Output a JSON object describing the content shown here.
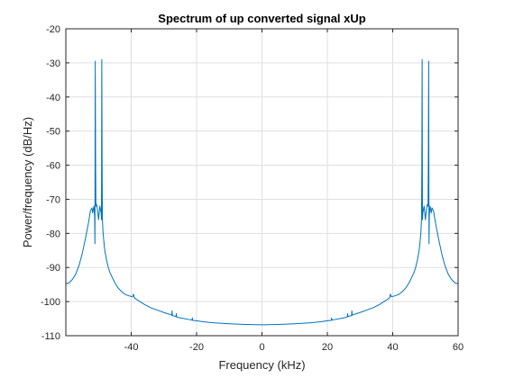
{
  "chart_data": {
    "type": "line",
    "title": "Spectrum of up converted signal xUp",
    "xlabel": "Frequency (kHz)",
    "ylabel": "Power/frequency (dB/Hz)",
    "xlim": [
      -60,
      60
    ],
    "ylim": [
      -110,
      -20
    ],
    "xticks": [
      -40,
      -20,
      0,
      20,
      40,
      60
    ],
    "yticks": [
      -110,
      -100,
      -90,
      -80,
      -70,
      -60,
      -50,
      -40,
      -30,
      -20
    ],
    "grid": true,
    "series": [
      {
        "color": "#0072bd",
        "x": [
          -60,
          -59,
          -58,
          -57,
          -56,
          -55,
          -54,
          -53.5,
          -53,
          -52.5,
          -52,
          -51.8,
          -51.6,
          -51.4,
          -51.2,
          -51.1,
          -51.0,
          -50.9,
          -50.8,
          -50.6,
          -50.4,
          -50.2,
          -50.0,
          -49.8,
          -49.6,
          -49.4,
          -49.2,
          -49.1,
          -49.0,
          -48.9,
          -48.8,
          -48.6,
          -48.4,
          -48.2,
          -48.0,
          -47.5,
          -47,
          -46.5,
          -46,
          -45,
          -44,
          -43,
          -42,
          -41,
          -40,
          -39.5,
          -39.3,
          -39.1,
          -38.9,
          -38,
          -36,
          -34,
          -32,
          -30,
          -28,
          -27.6,
          -27.5,
          -27.4,
          -27,
          -26.3,
          -26.2,
          -26.1,
          -25,
          -22,
          -21.4,
          -21.3,
          -21.2,
          -20,
          -18,
          -15,
          -10,
          -5,
          0,
          5,
          10,
          15,
          18,
          20,
          21.2,
          21.3,
          21.4,
          22,
          25,
          26.1,
          26.2,
          26.3,
          27,
          27.4,
          27.5,
          27.6,
          28,
          30,
          32,
          34,
          36,
          38,
          38.9,
          39.1,
          39.3,
          39.5,
          40,
          41,
          42,
          43,
          44,
          45,
          46,
          46.5,
          47,
          47.5,
          48.0,
          48.2,
          48.4,
          48.6,
          48.8,
          48.9,
          49.0,
          49.1,
          49.2,
          49.4,
          49.6,
          49.8,
          50.0,
          50.2,
          50.4,
          50.6,
          50.8,
          50.9,
          51.0,
          51.1,
          51.2,
          51.4,
          51.6,
          51.8,
          52,
          52.5,
          53,
          53.5,
          54,
          55,
          56,
          57,
          58,
          59,
          60
        ],
        "y": [
          -94.8,
          -94.5,
          -93.5,
          -92,
          -89.5,
          -86,
          -81.5,
          -79,
          -76.5,
          -73.5,
          -72.5,
          -74,
          -73,
          -72,
          -75,
          -83,
          -29.5,
          -58,
          -72,
          -71.5,
          -72.5,
          -74,
          -76,
          -74,
          -72,
          -73,
          -74,
          -76,
          -29,
          -60,
          -76,
          -80,
          -82,
          -84,
          -85.5,
          -88,
          -90,
          -91.5,
          -92.5,
          -94.5,
          -96,
          -97,
          -97.8,
          -98.2,
          -98.5,
          -98.5,
          -97.8,
          -98.7,
          -99,
          -99.6,
          -100.8,
          -101.8,
          -102.5,
          -103.2,
          -103.8,
          -104,
          -102.7,
          -104.1,
          -104.2,
          -104.4,
          -103.5,
          -104.5,
          -104.8,
          -105.3,
          -105.4,
          -104.8,
          -105.5,
          -105.6,
          -105.9,
          -106.2,
          -106.5,
          -106.7,
          -106.8,
          -106.7,
          -106.5,
          -106.2,
          -105.9,
          -105.6,
          -105.5,
          -104.8,
          -105.4,
          -105.3,
          -104.8,
          -104.5,
          -103.5,
          -104.4,
          -104.2,
          -104.1,
          -102.7,
          -104,
          -103.8,
          -103.2,
          -102.5,
          -101.8,
          -100.8,
          -99.6,
          -99,
          -98.7,
          -97.8,
          -98.5,
          -98.5,
          -98.2,
          -97.8,
          -97,
          -96,
          -94.5,
          -92.5,
          -91.5,
          -90,
          -88,
          -85.5,
          -84,
          -82,
          -80,
          -76,
          -60,
          -29,
          -76,
          -74,
          -73,
          -72,
          -74,
          -76,
          -74,
          -72.5,
          -71.5,
          -72,
          -58,
          -29.5,
          -83,
          -75,
          -72,
          -73,
          -74,
          -72.5,
          -73.5,
          -76.5,
          -79,
          -81.5,
          -86,
          -89.5,
          -92,
          -93.5,
          -94.5,
          -94.8
        ]
      }
    ]
  }
}
